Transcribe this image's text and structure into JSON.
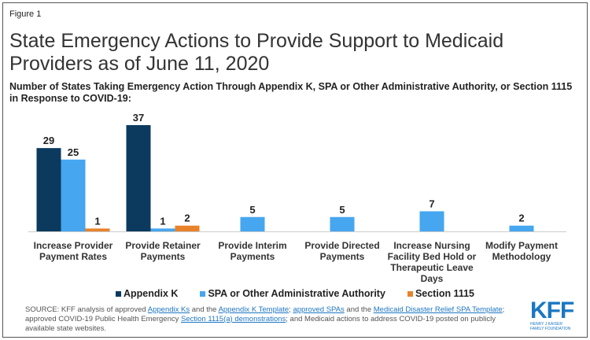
{
  "figure_label": "Figure 1",
  "chart_data": {
    "type": "bar",
    "title": "State Emergency Actions to Provide Support to Medicaid Providers as of June 11, 2020",
    "subtitle": "Number of States Taking Emergency Action Through Appendix K, SPA or Other Administrative Authority, or Section 1115 in Response to COVID-19:",
    "categories": [
      "Increase Provider Payment Rates",
      "Provide Retainer Payments",
      "Provide Interim Payments",
      "Provide Directed Payments",
      "Increase Nursing Facility Bed Hold or Therapeutic Leave Days",
      "Modify Payment Methodology"
    ],
    "category_lines": [
      [
        "Increase Provider",
        "Payment Rates"
      ],
      [
        "Provide Retainer",
        "Payments"
      ],
      [
        "Provide Interim",
        "Payments"
      ],
      [
        "Provide Directed",
        "Payments"
      ],
      [
        "Increase Nursing",
        "Facility Bed Hold or",
        "Therapeutic Leave",
        "Days"
      ],
      [
        "Modify Payment",
        "Methodology"
      ]
    ],
    "series": [
      {
        "name": "Appendix K",
        "color": "#0b3a5e",
        "values": [
          29,
          37,
          null,
          null,
          null,
          null
        ]
      },
      {
        "name": "SPA or Other Administrative Authority",
        "color": "#46a6ef",
        "values": [
          25,
          1,
          5,
          5,
          7,
          2
        ]
      },
      {
        "name": "Section 1115",
        "color": "#e8822b",
        "values": [
          1,
          2,
          null,
          null,
          null,
          null
        ]
      }
    ],
    "legend_position": "bottom",
    "grid": false
  },
  "source": {
    "prefix": "SOURCE: KFF analysis of approved ",
    "link1": "Appendix Ks",
    "t1": " and the ",
    "link2": "Appendix K Template",
    "t2": "; ",
    "link3": "approved SPAs",
    "t3": " and the ",
    "link4": "Medicaid Disaster Relief SPA Template",
    "t4": "; approved COVID-19 Public Health Emergency ",
    "link5": "Section 1115(a) demonstrations",
    "t5": "; and Medicaid actions to address COVID-19 posted on publicly available state websites."
  },
  "logo": {
    "name": "KFF",
    "line1": "HENRY J KAISER",
    "line2": "FAMILY FOUNDATION"
  }
}
